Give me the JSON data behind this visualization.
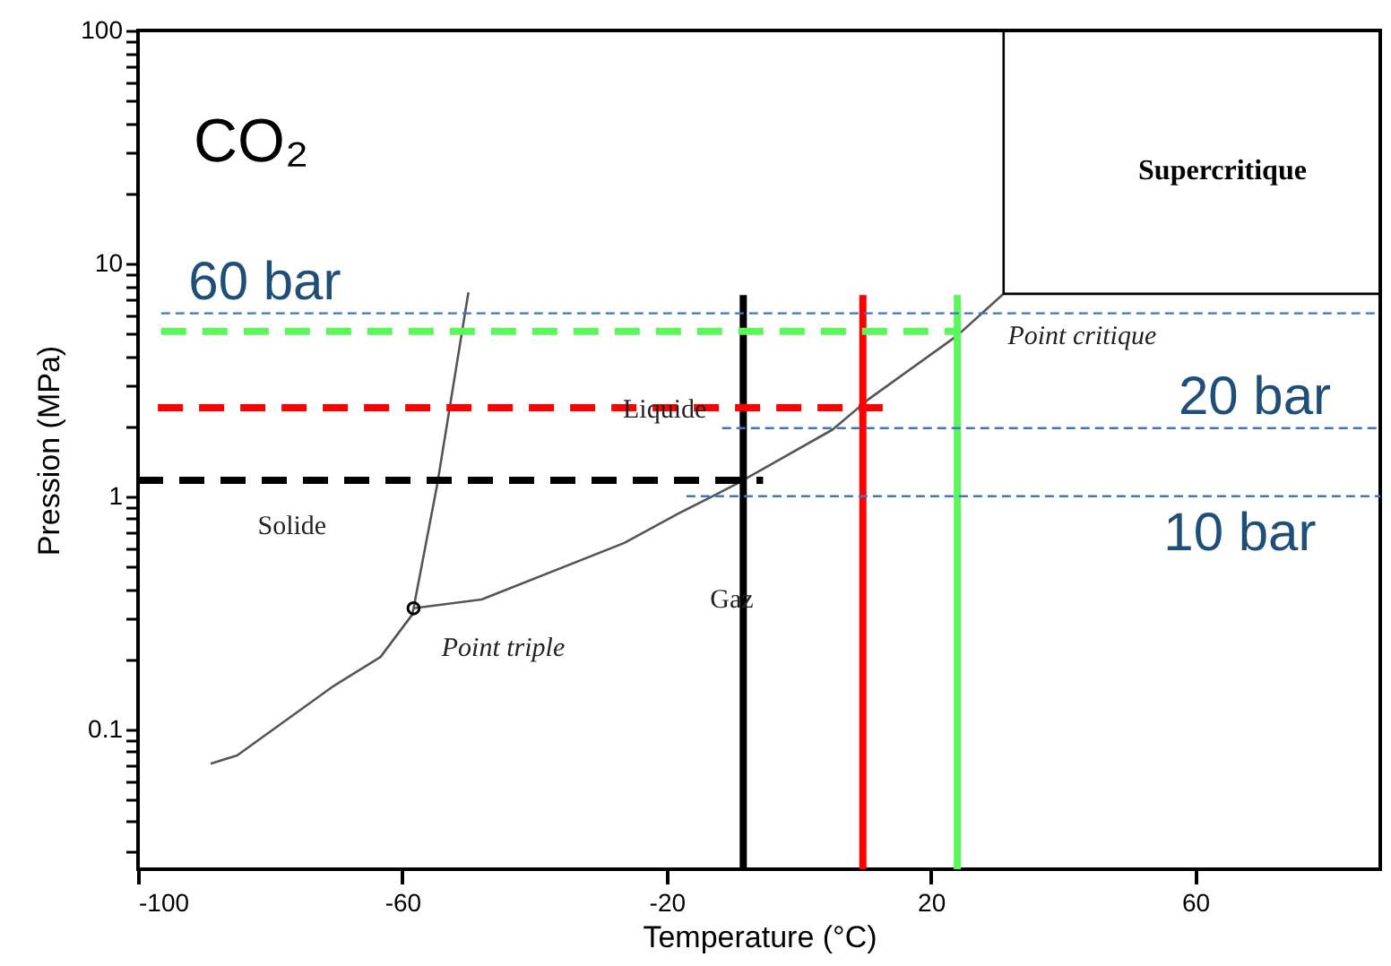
{
  "chart_data": {
    "type": "line",
    "xlabel": "Temperature (°C)",
    "ylabel": "Pression (MPa)",
    "log": true,
    "grid": false,
    "xlim": [
      -100,
      88
    ],
    "xticks": [
      -100,
      -60,
      -20,
      20,
      60
    ],
    "ylim": [
      0.025,
      100
    ],
    "yticks": [
      {
        "value": 0.03,
        "label": null
      },
      {
        "value": 0.04,
        "label": null
      },
      {
        "value": 0.05,
        "label": null
      },
      {
        "value": 0.06,
        "label": null
      },
      {
        "value": 0.07,
        "label": null
      },
      {
        "value": 0.08,
        "label": null
      },
      {
        "value": 0.09,
        "label": null
      },
      0.1,
      {
        "value": 0.2,
        "label": null
      },
      {
        "value": 0.3,
        "label": null
      },
      {
        "value": 0.4,
        "label": null
      },
      {
        "value": 0.5,
        "label": null
      },
      {
        "value": 0.6,
        "label": null
      },
      {
        "value": 0.7,
        "label": null
      },
      {
        "value": 0.8,
        "label": null
      },
      {
        "value": 0.9,
        "label": null
      },
      1,
      {
        "value": 2,
        "label": null
      },
      {
        "value": 3,
        "label": null
      },
      {
        "value": 4,
        "label": null
      },
      {
        "value": 5,
        "label": null
      },
      {
        "value": 6,
        "label": null
      },
      {
        "value": 7,
        "label": null
      },
      {
        "value": 8,
        "label": null
      },
      {
        "value": 9,
        "label": null
      },
      10,
      {
        "value": 20,
        "label": null
      },
      {
        "value": 30,
        "label": null
      },
      {
        "value": 40,
        "label": null
      },
      {
        "value": 50,
        "label": null
      },
      {
        "value": 60,
        "label": null
      },
      {
        "value": 70,
        "label": null
      },
      {
        "value": 80,
        "label": null
      },
      {
        "value": 90,
        "label": null
      },
      100
    ],
    "series": [
      {
        "color": "#555555",
        "line_style": "solid",
        "x": [
          -89,
          -85,
          -70.4,
          -63.3,
          -58.5,
          -58.3
        ],
        "values": [
          0.071,
          0.077,
          0.153,
          0.204,
          0.31,
          0.33
        ]
      },
      {
        "color": "#555555",
        "line_style": "solid",
        "x": [
          -58.3,
          -54.7,
          -50
        ],
        "values": [
          0.33,
          1.13,
          7.5
        ]
      },
      {
        "color": "#555555",
        "line_style": "solid",
        "x": [
          -58.3,
          -48,
          -26.4,
          -18.3,
          -13,
          -9.4,
          5.1,
          10.5,
          24,
          31
        ],
        "values": [
          0.33,
          0.36,
          0.63,
          0.84,
          1.0,
          1.13,
          1.93,
          2.6,
          4.9,
          7.4
        ]
      },
      {
        "color": "#000000",
        "line_style": "solid",
        "x": [
          31,
          31,
          88
        ],
        "values": [
          100,
          7.4,
          7.4
        ]
      },
      {
        "type": "scatter",
        "color": "#000000",
        "marker": "circle",
        "x": [
          -58.3
        ],
        "values": [
          0.33
        ]
      },
      {
        "color": "#000000",
        "line_style": "solid",
        "x": [
          -8.4,
          -8.4
        ],
        "values": [
          7.3,
          0.025
        ]
      },
      {
        "color": "#ff0000",
        "line_style": "solid",
        "x": [
          9.7,
          9.7
        ],
        "values": [
          7.3,
          0.025
        ]
      },
      {
        "color": "#5cf55c",
        "line_style": "solid",
        "x": [
          24,
          24
        ],
        "values": [
          7.3,
          0.025
        ]
      },
      {
        "color": "#5cf55c",
        "line_style": "dashed",
        "x": [
          -96.5,
          24
        ],
        "values": [
          5.1,
          5.1
        ]
      },
      {
        "color": "#ff0000",
        "line_style": "dashed",
        "x": [
          -97,
          12.7
        ],
        "values": [
          2.4,
          2.4
        ]
      },
      {
        "color": "#000000",
        "line_style": "dashed",
        "x": [
          -100,
          -5.4
        ],
        "values": [
          1.17,
          1.17
        ]
      },
      {
        "color": "#4472c4",
        "line_style": "dashed",
        "x": [
          -96.5,
          88
        ],
        "values": [
          6.1,
          6.1
        ]
      },
      {
        "color": "#4472c4",
        "line_style": "dashed",
        "x": [
          -11.6,
          88
        ],
        "values": [
          1.96,
          1.96
        ]
      },
      {
        "color": "#4472c4",
        "line_style": "dashed",
        "x": [
          -17,
          88
        ],
        "values": [
          1.0,
          1.0
        ]
      }
    ],
    "annotations": [
      "CO₂",
      "60 bar",
      "20 bar",
      "10 bar",
      "Solide",
      "Liquide",
      "Gaz",
      "Supercritique",
      "Point triple",
      "Point critique"
    ]
  }
}
